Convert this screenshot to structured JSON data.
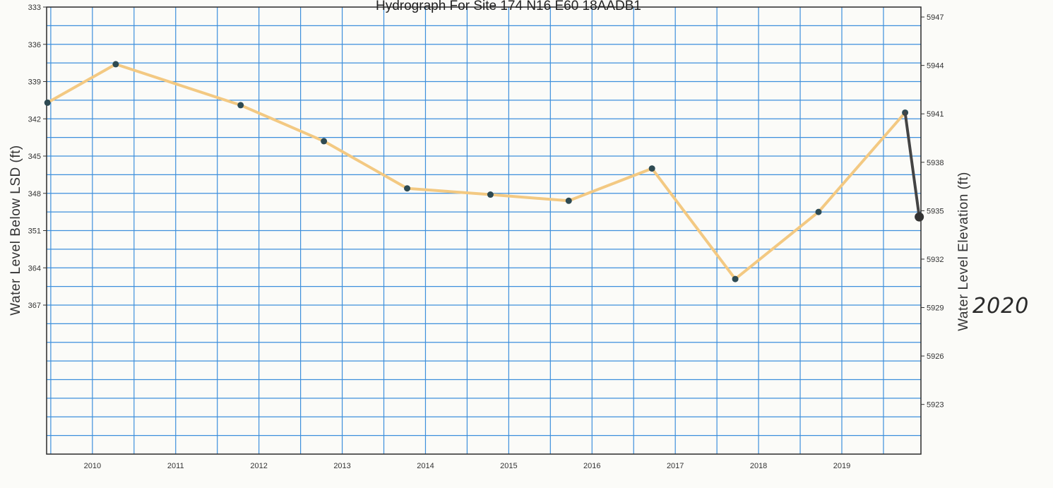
{
  "chart_data": {
    "type": "line",
    "title": "Hydrograph For Site 174  N16 E60 18AADB1",
    "ylabel": "Water Level Below LSD (ft)",
    "y2label": "Water Level Elevation (ft)",
    "ylim": [
      333,
      369
    ],
    "y_ticks": [
      "333",
      "336",
      "339",
      "342",
      "345",
      "348",
      "351",
      "364",
      "367"
    ],
    "y2_ticks": [
      "5947",
      "5944",
      "5941",
      "5938",
      "5935",
      "5932",
      "5929",
      "5926",
      "5923"
    ],
    "x_ticks": [
      "2010",
      "2011",
      "2012",
      "2013",
      "2014",
      "2015",
      "2016",
      "2017",
      "2018",
      "2019"
    ],
    "xlim": [
      2009.45,
      2019.95
    ],
    "grid": true,
    "colors": {
      "series_line": "#f3c982",
      "marker": "#2e4a52",
      "grid": "#3d8fdc",
      "annotation_line": "#444444"
    },
    "series": [
      {
        "points": [
          {
            "x": 2009.46,
            "y": 340.7
          },
          {
            "x": 2010.28,
            "y": 337.6
          },
          {
            "x": 2011.78,
            "y": 340.9
          },
          {
            "x": 2012.78,
            "y": 343.8
          },
          {
            "x": 2013.78,
            "y": 347.6
          },
          {
            "x": 2014.78,
            "y": 348.1
          },
          {
            "x": 2015.72,
            "y": 348.6
          },
          {
            "x": 2016.72,
            "y": 346.0
          },
          {
            "x": 2017.72,
            "y": 354.9
          },
          {
            "x": 2018.72,
            "y": 349.5
          },
          {
            "x": 2019.76,
            "y": 341.5
          }
        ]
      }
    ],
    "annotation": {
      "label": "2020",
      "from": {
        "x": 2019.76,
        "y": 341.5
      },
      "to": {
        "x": 2019.93,
        "y": 349.9
      }
    }
  }
}
